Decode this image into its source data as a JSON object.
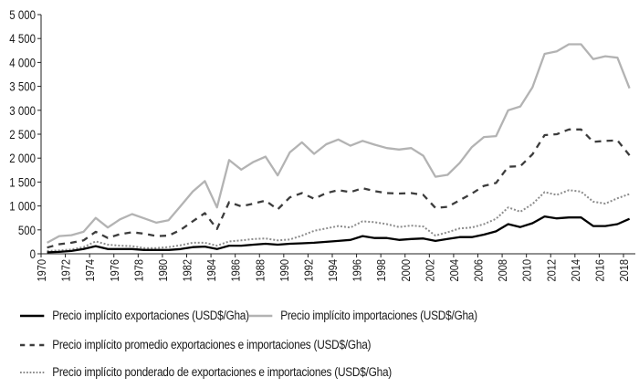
{
  "chart_data": {
    "type": "line",
    "title": "",
    "xlabel": "",
    "ylabel": "",
    "ylim": [
      0,
      5000
    ],
    "yticks": [
      0,
      500,
      1000,
      1500,
      2000,
      2500,
      3000,
      3500,
      4000,
      4500,
      5000
    ],
    "ytick_labels": [
      "0",
      "500",
      "1 000",
      "1 500",
      "2 000",
      "2 500",
      "3 000",
      "3 500",
      "4 000",
      "4 500",
      "5 000"
    ],
    "xtick_labels": [
      "1970",
      "1972",
      "1974",
      "1976",
      "1978",
      "1980",
      "1982",
      "1984",
      "1986",
      "1988",
      "1990",
      "1992",
      "1994",
      "1996",
      "1998",
      "2000",
      "2002",
      "2004",
      "2006",
      "2008",
      "2010",
      "2012",
      "2014",
      "2016",
      "2018"
    ],
    "grid": false,
    "legend_placement": "bottom",
    "x": [
      1970,
      1971,
      1972,
      1973,
      1974,
      1975,
      1976,
      1977,
      1978,
      1979,
      1980,
      1981,
      1982,
      1983,
      1984,
      1985,
      1986,
      1987,
      1988,
      1989,
      1990,
      1991,
      1992,
      1993,
      1994,
      1995,
      1996,
      1997,
      1998,
      1999,
      2000,
      2001,
      2002,
      2003,
      2004,
      2005,
      2006,
      2007,
      2008,
      2009,
      2010,
      2011,
      2012,
      2013,
      2014,
      2015,
      2016,
      2017,
      2018
    ],
    "series": [
      {
        "name": "Precio implícito exportaciones (USD$/Gha)",
        "color": "#000000",
        "style": "solid",
        "values": [
          30,
          40,
          60,
          100,
          160,
          100,
          100,
          100,
          80,
          80,
          80,
          100,
          140,
          150,
          100,
          170,
          170,
          190,
          210,
          190,
          210,
          220,
          230,
          250,
          270,
          290,
          370,
          330,
          330,
          290,
          310,
          320,
          270,
          310,
          350,
          350,
          400,
          470,
          620,
          560,
          640,
          780,
          740,
          760,
          760,
          580,
          580,
          620,
          730
        ]
      },
      {
        "name": "Precio implícito importaciones (USD$/Gha)",
        "color": "#b3b3b3",
        "style": "solid",
        "values": [
          230,
          370,
          390,
          460,
          750,
          550,
          720,
          830,
          740,
          650,
          700,
          1000,
          1300,
          1520,
          970,
          1960,
          1760,
          1920,
          2030,
          1640,
          2120,
          2330,
          2090,
          2290,
          2390,
          2260,
          2360,
          2280,
          2210,
          2180,
          2210,
          2050,
          1610,
          1650,
          1900,
          2230,
          2440,
          2460,
          3000,
          3080,
          3480,
          4180,
          4230,
          4380,
          4380,
          4070,
          4130,
          4100,
          3460
        ]
      },
      {
        "name": "Precio implícito promedio exportaciones e importaciones (USD$/Gha)",
        "color": "#3c3c3c",
        "style": "dashed",
        "values": [
          130,
          200,
          230,
          280,
          460,
          330,
          410,
          450,
          420,
          370,
          380,
          500,
          680,
          850,
          520,
          1080,
          990,
          1050,
          1110,
          930,
          1180,
          1270,
          1150,
          1270,
          1330,
          1290,
          1370,
          1310,
          1270,
          1260,
          1270,
          1230,
          960,
          980,
          1120,
          1260,
          1420,
          1480,
          1820,
          1830,
          2080,
          2480,
          2500,
          2600,
          2600,
          2340,
          2360,
          2370,
          2060
        ]
      },
      {
        "name": "Precio implícito ponderado de exportaciones e importaciones (USD$/Gha)",
        "color": "#8c8c8c",
        "style": "dotted",
        "values": [
          60,
          70,
          90,
          140,
          260,
          190,
          170,
          160,
          120,
          120,
          140,
          180,
          230,
          230,
          170,
          260,
          280,
          310,
          320,
          280,
          300,
          380,
          480,
          530,
          580,
          550,
          680,
          660,
          620,
          560,
          590,
          570,
          380,
          450,
          530,
          550,
          620,
          730,
          970,
          880,
          1040,
          1290,
          1230,
          1330,
          1300,
          1090,
          1050,
          1160,
          1250
        ]
      }
    ]
  }
}
